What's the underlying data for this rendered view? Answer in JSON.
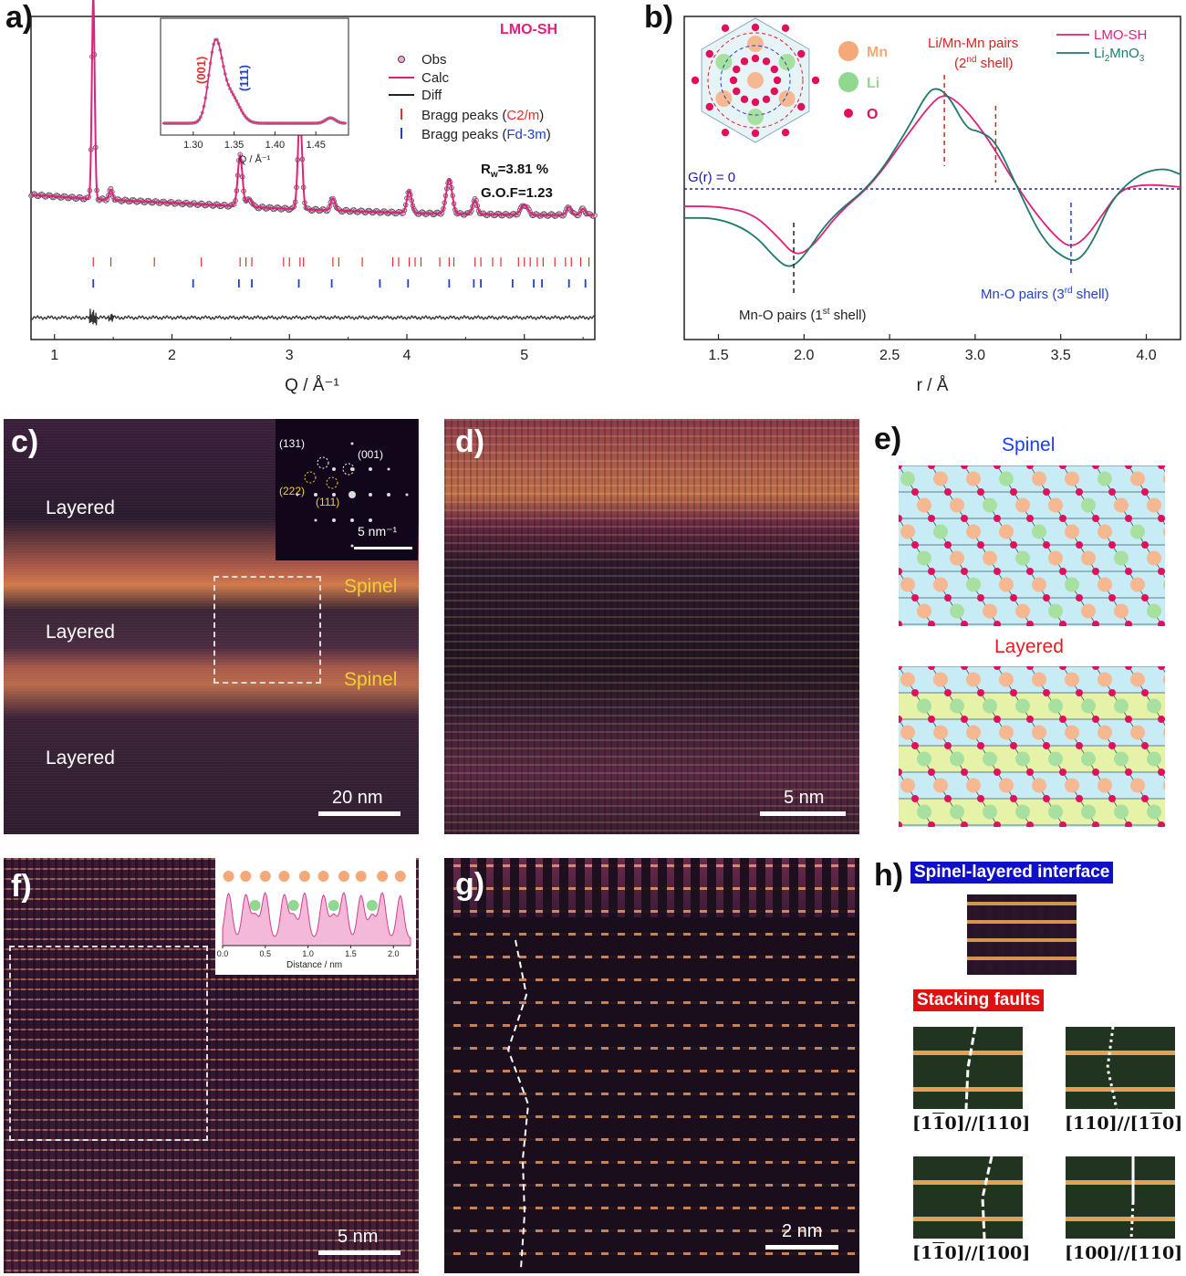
{
  "panels": {
    "a": "a)",
    "b": "b)",
    "c": "c)",
    "d": "d)",
    "e": "e)",
    "f": "f)",
    "g": "g)",
    "h": "h)"
  },
  "chart_data": [
    {
      "type": "line",
      "panel": "a",
      "title": "LMO-SH",
      "xlabel": "Q / Å⁻¹",
      "xlim": [
        0.8,
        5.6
      ],
      "xticks": [
        1,
        2,
        3,
        4,
        5
      ],
      "legend": [
        {
          "name": "Obs",
          "marker": "circle",
          "color": "#f0a8d8"
        },
        {
          "name": "Calc",
          "color": "#e0207a"
        },
        {
          "name": "Diff",
          "color": "#222222"
        }
      ],
      "bragg_legend": [
        {
          "prefix": "Bragg peaks (",
          "phase": "C2/m",
          "suffix": ")",
          "color": "#e03030"
        },
        {
          "prefix": "Bragg peaks (",
          "phase": "Fd-3m",
          "suffix": ")",
          "color": "#2040d0"
        }
      ],
      "rw_label": "R",
      "rw_sub": "w",
      "rw_value": "=3.81 %",
      "gof": "G.O.F=1.23",
      "baseline": [
        [
          0.8,
          0.12
        ],
        [
          1.3,
          0.1
        ],
        [
          2.0,
          0.08
        ],
        [
          3.0,
          0.05
        ],
        [
          4.0,
          0.03
        ],
        [
          5.0,
          0.02
        ],
        [
          5.6,
          0.02
        ]
      ],
      "peaks": [
        {
          "q": 1.33,
          "h": 1.0,
          "w": 0.012
        },
        {
          "q": 1.48,
          "h": 0.05,
          "w": 0.015
        },
        {
          "q": 2.58,
          "h": 0.25,
          "w": 0.02
        },
        {
          "q": 2.66,
          "h": 0.04,
          "w": 0.02
        },
        {
          "q": 3.09,
          "h": 0.46,
          "w": 0.018
        },
        {
          "q": 3.37,
          "h": 0.06,
          "w": 0.018
        },
        {
          "q": 4.02,
          "h": 0.11,
          "w": 0.02
        },
        {
          "q": 4.36,
          "h": 0.17,
          "w": 0.025
        },
        {
          "q": 4.58,
          "h": 0.07,
          "w": 0.02
        },
        {
          "q": 5.0,
          "h": 0.05,
          "w": 0.03
        },
        {
          "q": 5.38,
          "h": 0.04,
          "w": 0.02
        },
        {
          "q": 5.5,
          "h": 0.03,
          "w": 0.02
        }
      ],
      "bragg_c2m": [
        1.33,
        1.48,
        1.85,
        2.25,
        2.58,
        2.63,
        2.68,
        2.95,
        3.0,
        3.09,
        3.12,
        3.37,
        3.42,
        3.62,
        3.88,
        3.93,
        4.02,
        4.07,
        4.12,
        4.28,
        4.36,
        4.4,
        4.58,
        4.63,
        4.73,
        4.8,
        4.95,
        5.0,
        5.05,
        5.11,
        5.16,
        5.26,
        5.35,
        5.4,
        5.48,
        5.55
      ],
      "bragg_fd3m": [
        1.33,
        2.18,
        2.57,
        2.68,
        3.08,
        3.36,
        3.77,
        4.01,
        4.36,
        4.57,
        4.63,
        4.9,
        5.08,
        5.15,
        5.38,
        5.52
      ],
      "inset": {
        "xlabel": "Q / Å⁻¹",
        "xlim": [
          1.26,
          1.49
        ],
        "xticks": [
          "1.30",
          "1.35",
          "1.40",
          "1.45"
        ],
        "label_001": "(001)",
        "label_111": "(111)"
      }
    },
    {
      "type": "line",
      "panel": "b",
      "xlabel": "r / Å",
      "xlim": [
        1.3,
        4.2
      ],
      "xticks": [
        "1.5",
        "2.0",
        "2.5",
        "3.0",
        "3.5",
        "4.0"
      ],
      "series": [
        {
          "name": "LMO-SH",
          "color": "#e0207a",
          "x": [
            1.3,
            1.5,
            1.7,
            1.85,
            1.95,
            2.05,
            2.2,
            2.4,
            2.6,
            2.75,
            2.82,
            2.9,
            3.0,
            3.1,
            3.2,
            3.35,
            3.5,
            3.57,
            3.65,
            3.75,
            3.85,
            4.0,
            4.2
          ],
          "y": [
            -0.18,
            -0.18,
            -0.25,
            -0.5,
            -0.7,
            -0.6,
            -0.25,
            0.05,
            0.55,
            0.9,
            0.98,
            0.9,
            0.7,
            0.45,
            0.15,
            -0.25,
            -0.55,
            -0.6,
            -0.5,
            -0.25,
            0.0,
            0.05,
            0.02
          ]
        },
        {
          "name": "Li₂MnO₃",
          "color": "#1e7a6e",
          "x": [
            1.3,
            1.5,
            1.7,
            1.85,
            1.92,
            2.0,
            2.15,
            2.4,
            2.6,
            2.72,
            2.78,
            2.85,
            2.95,
            3.02,
            3.12,
            3.25,
            3.4,
            3.55,
            3.62,
            3.7,
            3.8,
            3.95,
            4.1,
            4.2
          ],
          "y": [
            -0.3,
            -0.3,
            -0.45,
            -0.75,
            -0.82,
            -0.7,
            -0.3,
            0.05,
            0.6,
            1.0,
            1.05,
            0.95,
            0.62,
            0.6,
            0.5,
            0.0,
            -0.55,
            -0.75,
            -0.72,
            -0.5,
            -0.1,
            0.15,
            0.22,
            0.15
          ]
        }
      ],
      "zero_label": "G(r) = 0",
      "ann_mno1_pre": "Mn-O pairs (1",
      "ann_mno1_sup": "st",
      "ann_mno1_post": " shell)",
      "ann_limn": "Li/Mn-Mn pairs",
      "ann_limn2_pre": "(2",
      "ann_limn2_sup": "nd",
      "ann_limn2_post": " shell)",
      "ann_mno3_pre": "Mn-O pairs (3",
      "ann_mno3_sup": "rd",
      "ann_mno3_post": " shell)",
      "lines": {
        "first": 1.94,
        "second_a": 2.82,
        "second_b": 3.12,
        "third": 3.56
      },
      "legend_li_pre": "Li",
      "legend_li_sub": "2",
      "legend_li_mid": "MnO",
      "legend_li_sub2": "3",
      "structure_legend": [
        {
          "name": "Mn",
          "color": "#f5a878"
        },
        {
          "name": "Li",
          "color": "#90d890"
        },
        {
          "name": "O",
          "color": "#e0105a"
        }
      ]
    }
  ],
  "panel_c": {
    "labels": [
      "Layered",
      "Spinel",
      "Layered",
      "Spinel",
      "Layered"
    ],
    "fft": [
      "(131)",
      "(001)",
      "(222)",
      "(111)",
      "5 nm⁻¹"
    ],
    "scale": "20 nm"
  },
  "panel_d": {
    "scale": "5 nm"
  },
  "panel_e": {
    "spinel": "Spinel",
    "layered": "Layered",
    "spinel_color": "#1a3cff",
    "layered_color": "#e02020"
  },
  "panel_f": {
    "scale": "5 nm",
    "inset_xlabel": "Distance / nm",
    "inset_ticks": [
      "0.0",
      "0.5",
      "1.0",
      "1.5",
      "2.0"
    ]
  },
  "panel_g": {
    "scale": "2 nm"
  },
  "panel_h": {
    "interface": "Spinel-layered interface",
    "faults": "Stacking faults",
    "captions": [
      {
        "a": "[1",
        "a_bar": "1",
        "a_end": "0]",
        "b": "//[110]"
      },
      {
        "a": "[110]//[1",
        "b_bar": "1",
        "b_end": "0]"
      },
      {
        "a": "[1",
        "a_bar": "1",
        "a_end": "0]",
        "b": "//[100]"
      },
      {
        "a": "[100]//[110]"
      }
    ]
  }
}
